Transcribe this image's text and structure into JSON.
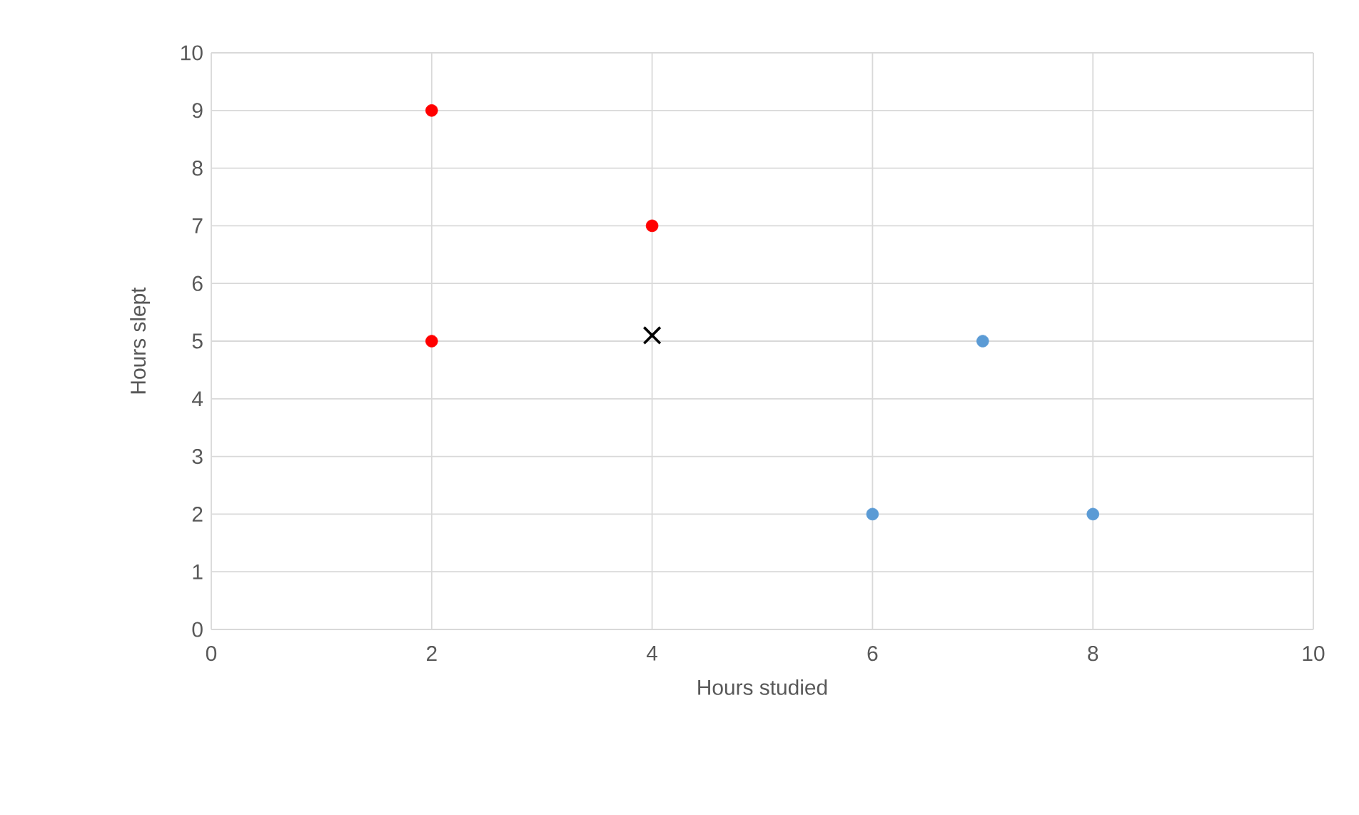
{
  "chart_data": {
    "type": "scatter",
    "xlabel": "Hours studied",
    "ylabel": "Hours slept",
    "xlim": [
      0,
      10
    ],
    "ylim": [
      0,
      10
    ],
    "xticks": [
      0,
      2,
      4,
      6,
      8,
      10
    ],
    "yticks": [
      0,
      1,
      2,
      3,
      4,
      5,
      6,
      7,
      8,
      9,
      10
    ],
    "grid": true,
    "series": [
      {
        "color": "#5b9bd5",
        "x": [
          6,
          7,
          8
        ],
        "values": [
          2,
          5,
          2
        ],
        "marker": "circle"
      },
      {
        "color": "#ff0000",
        "x": [
          2,
          2,
          4
        ],
        "values": [
          9,
          5,
          7
        ],
        "marker": "circle"
      },
      {
        "color": "#000000",
        "x": [
          4
        ],
        "values": [
          5.1
        ],
        "marker": "cross"
      }
    ]
  }
}
